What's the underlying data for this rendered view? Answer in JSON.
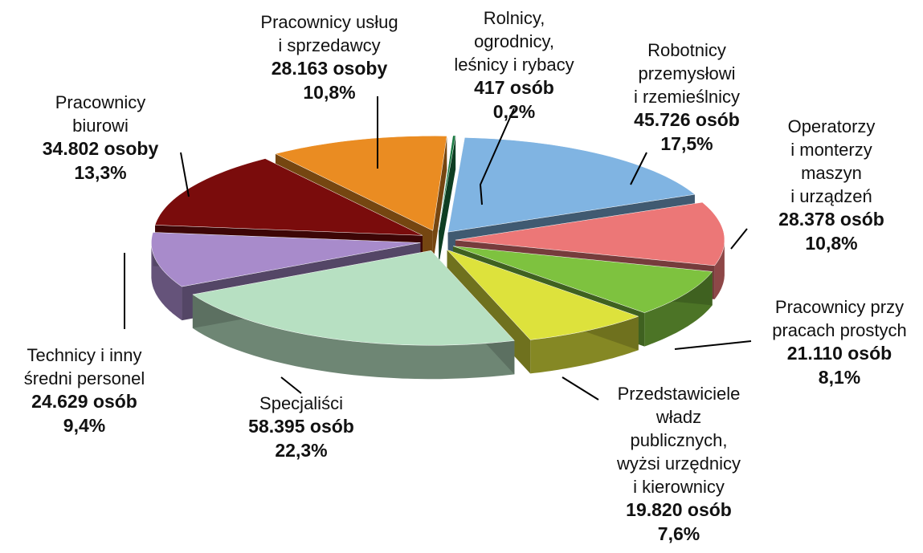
{
  "chart_data": {
    "type": "pie",
    "categories": [
      "Rolnicy,\nogrodnicy,\nleśnicy i rybacy",
      "Robotnicy\nprzemysłowi\ni rzemieślnicy",
      "Operatorzy\ni monterzy\nmaszyn\ni urządzeń",
      "Pracownicy przy\npracach prostych",
      "Przedstawiciele\nwładz\npublicznych,\nwyżsi urzędnicy\ni kierownicy",
      "Specjaliści",
      "Technicy i inny\nśredni personel",
      "Pracownicy\nbiurowi",
      "Pracownicy usług\ni sprzedawcy"
    ],
    "values": [
      417,
      45726,
      28378,
      21110,
      19820,
      58395,
      24629,
      34802,
      28163
    ],
    "value_labels": [
      "417 osób",
      "45.726 osób",
      "28.378 osób",
      "21.110 osób",
      "19.820 osób",
      "58.395 osób",
      "24.629 osób",
      "34.802 osoby",
      "28.163 osoby"
    ],
    "percent_labels": [
      "0,2%",
      "17,5%",
      "10,8%",
      "8,1%",
      "7,6%",
      "22,3%",
      "9,4%",
      "13,3%",
      "10,8%"
    ],
    "colors": [
      "#1b7a43",
      "#80b4e2",
      "#ec7777",
      "#7ec23f",
      "#dde23c",
      "#b7e0c2",
      "#a88bcb",
      "#7a0c0c",
      "#ea8c22"
    ]
  }
}
